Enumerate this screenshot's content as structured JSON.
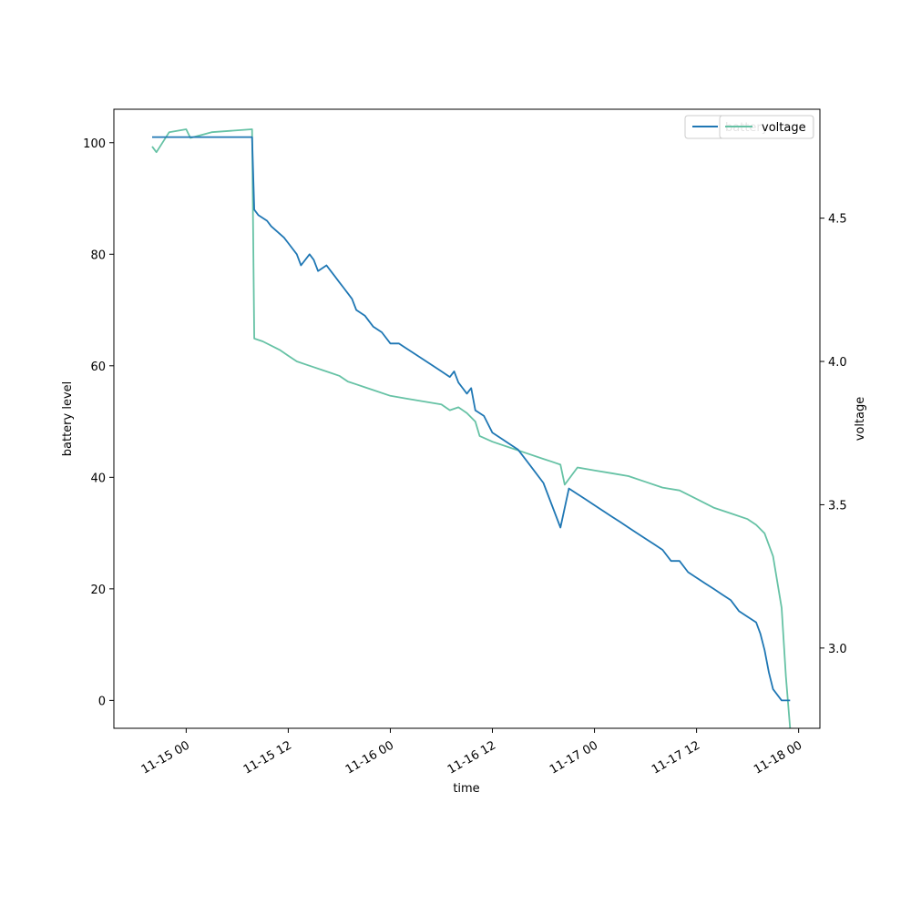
{
  "chart_data": {
    "type": "line",
    "xlabel": "time",
    "ylabel": "battery level",
    "y2label": "voltage",
    "x_ticks": [
      "11-15 00",
      "11-15 12",
      "11-16 00",
      "11-16 12",
      "11-17 00",
      "11-17 12",
      "11-18 00"
    ],
    "y_ticks": [
      0,
      20,
      40,
      60,
      80,
      100
    ],
    "y2_ticks": [
      "3.0",
      "3.5",
      "4.0",
      "4.5"
    ],
    "ylim": [
      -5,
      106
    ],
    "y2lim": [
      2.72,
      4.88
    ],
    "xlim": [
      "2021-11-14 15:30",
      "2021-11-18 02:30"
    ],
    "legend_position": "top-right",
    "grid": false,
    "colors": {
      "battery": "#1f77b4",
      "voltage": "#66c2a5"
    },
    "series": [
      {
        "name": "battery",
        "axis": "left",
        "x": [
          "2021-11-14 20:00",
          "2021-11-15 00:00",
          "2021-11-15 03:00",
          "2021-11-15 07:45",
          "2021-11-15 08:00",
          "2021-11-15 08:30",
          "2021-11-15 09:30",
          "2021-11-15 10:00",
          "2021-11-15 11:30",
          "2021-11-15 12:00",
          "2021-11-15 13:00",
          "2021-11-15 13:30",
          "2021-11-15 14:30",
          "2021-11-15 15:00",
          "2021-11-15 15:30",
          "2021-11-15 16:30",
          "2021-11-15 17:00",
          "2021-11-15 17:30",
          "2021-11-15 18:00",
          "2021-11-15 18:30",
          "2021-11-15 19:30",
          "2021-11-15 20:00",
          "2021-11-15 21:00",
          "2021-11-15 21:30",
          "2021-11-15 22:00",
          "2021-11-15 23:00",
          "2021-11-16 00:00",
          "2021-11-16 01:00",
          "2021-11-16 02:00",
          "2021-11-16 03:00",
          "2021-11-16 05:00",
          "2021-11-16 06:00",
          "2021-11-16 07:00",
          "2021-11-16 07:30",
          "2021-11-16 08:00",
          "2021-11-16 09:00",
          "2021-11-16 09:30",
          "2021-11-16 10:00",
          "2021-11-16 11:00",
          "2021-11-16 12:00",
          "2021-11-16 13:00",
          "2021-11-16 14:00",
          "2021-11-16 15:00",
          "2021-11-16 16:00",
          "2021-11-16 17:00",
          "2021-11-16 18:00",
          "2021-11-16 20:00",
          "2021-11-16 21:00",
          "2021-11-16 22:00",
          "2021-11-16 23:00",
          "2021-11-17 00:00",
          "2021-11-17 01:00",
          "2021-11-17 02:00",
          "2021-11-17 03:00",
          "2021-11-17 04:00",
          "2021-11-17 05:00",
          "2021-11-17 06:00",
          "2021-11-17 07:00",
          "2021-11-17 08:00",
          "2021-11-17 09:00",
          "2021-11-17 10:00",
          "2021-11-17 11:00",
          "2021-11-17 12:00",
          "2021-11-17 13:00",
          "2021-11-17 14:00",
          "2021-11-17 15:00",
          "2021-11-17 16:00",
          "2021-11-17 17:00",
          "2021-11-17 18:00",
          "2021-11-17 19:00",
          "2021-11-17 19:30",
          "2021-11-17 20:00",
          "2021-11-17 20:30",
          "2021-11-17 21:00",
          "2021-11-17 22:00",
          "2021-11-17 23:00"
        ],
        "y": [
          101,
          101,
          101,
          101,
          88,
          87,
          86,
          85,
          83,
          82,
          80,
          78,
          80,
          79,
          77,
          78,
          77,
          76,
          75,
          74,
          72,
          70,
          69,
          68,
          67,
          66,
          64,
          64,
          63,
          62,
          60,
          59,
          58,
          59,
          57,
          55,
          56,
          52,
          51,
          48,
          47,
          46,
          45,
          43,
          41,
          39,
          31,
          38,
          37,
          36,
          35,
          34,
          33,
          32,
          31,
          30,
          29,
          28,
          27,
          25,
          25,
          23,
          22,
          21,
          20,
          19,
          18,
          16,
          15,
          14,
          12,
          9,
          5,
          2,
          0,
          0
        ],
        "values": [
          101,
          101,
          101,
          101,
          88,
          87,
          86,
          85,
          83,
          82,
          80,
          78,
          80,
          79,
          77,
          78,
          77,
          76,
          75,
          74,
          72,
          70,
          69,
          68,
          67,
          66,
          64,
          64,
          63,
          62,
          60,
          59,
          58,
          59,
          57,
          55,
          56,
          52,
          51,
          48,
          47,
          46,
          45,
          43,
          41,
          39,
          31,
          38,
          37,
          36,
          35,
          34,
          33,
          32,
          31,
          30,
          29,
          28,
          27,
          25,
          25,
          23,
          22,
          21,
          20,
          19,
          18,
          16,
          15,
          14,
          12,
          9,
          5,
          2,
          0,
          0
        ]
      },
      {
        "name": "voltage",
        "axis": "right",
        "x": [
          "2021-11-14 20:00",
          "2021-11-14 20:30",
          "2021-11-14 22:00",
          "2021-11-15 00:00",
          "2021-11-15 00:30",
          "2021-11-15 03:00",
          "2021-11-15 07:45",
          "2021-11-15 08:00",
          "2021-11-15 09:00",
          "2021-11-15 11:00",
          "2021-11-15 12:00",
          "2021-11-15 13:00",
          "2021-11-15 14:00",
          "2021-11-15 15:00",
          "2021-11-15 16:00",
          "2021-11-15 17:00",
          "2021-11-15 18:00",
          "2021-11-15 19:00",
          "2021-11-15 20:00",
          "2021-11-15 21:00",
          "2021-11-15 22:00",
          "2021-11-16 00:00",
          "2021-11-16 02:00",
          "2021-11-16 04:00",
          "2021-11-16 06:00",
          "2021-11-16 07:00",
          "2021-11-16 08:00",
          "2021-11-16 09:00",
          "2021-11-16 10:00",
          "2021-11-16 10:30",
          "2021-11-16 12:00",
          "2021-11-16 14:00",
          "2021-11-16 16:00",
          "2021-11-16 18:00",
          "2021-11-16 19:00",
          "2021-11-16 20:00",
          "2021-11-16 20:30",
          "2021-11-16 22:00",
          "2021-11-17 00:00",
          "2021-11-17 02:00",
          "2021-11-17 04:00",
          "2021-11-17 06:00",
          "2021-11-17 08:00",
          "2021-11-17 10:00",
          "2021-11-17 12:00",
          "2021-11-17 14:00",
          "2021-11-17 16:00",
          "2021-11-17 18:00",
          "2021-11-17 19:00",
          "2021-11-17 20:00",
          "2021-11-17 21:00",
          "2021-11-17 22:00",
          "2021-11-17 22:30",
          "2021-11-17 23:00"
        ],
        "y": [
          4.75,
          4.73,
          4.8,
          4.81,
          4.78,
          4.8,
          4.81,
          4.08,
          4.07,
          4.04,
          4.02,
          4.0,
          3.99,
          3.98,
          3.97,
          3.96,
          3.95,
          3.93,
          3.92,
          3.91,
          3.9,
          3.88,
          3.87,
          3.86,
          3.85,
          3.83,
          3.84,
          3.82,
          3.79,
          3.74,
          3.72,
          3.7,
          3.68,
          3.66,
          3.65,
          3.64,
          3.57,
          3.63,
          3.62,
          3.61,
          3.6,
          3.58,
          3.56,
          3.55,
          3.52,
          3.49,
          3.47,
          3.45,
          3.43,
          3.4,
          3.32,
          3.14,
          2.9,
          2.72
        ],
        "values": [
          4.75,
          4.73,
          4.8,
          4.81,
          4.78,
          4.8,
          4.81,
          4.08,
          4.07,
          4.04,
          4.02,
          4.0,
          3.99,
          3.98,
          3.97,
          3.96,
          3.95,
          3.93,
          3.92,
          3.91,
          3.9,
          3.88,
          3.87,
          3.86,
          3.85,
          3.83,
          3.84,
          3.82,
          3.79,
          3.74,
          3.72,
          3.7,
          3.68,
          3.66,
          3.65,
          3.64,
          3.57,
          3.63,
          3.62,
          3.61,
          3.6,
          3.58,
          3.56,
          3.55,
          3.52,
          3.49,
          3.47,
          3.45,
          3.43,
          3.4,
          3.32,
          3.14,
          2.9,
          2.72
        ]
      }
    ]
  }
}
